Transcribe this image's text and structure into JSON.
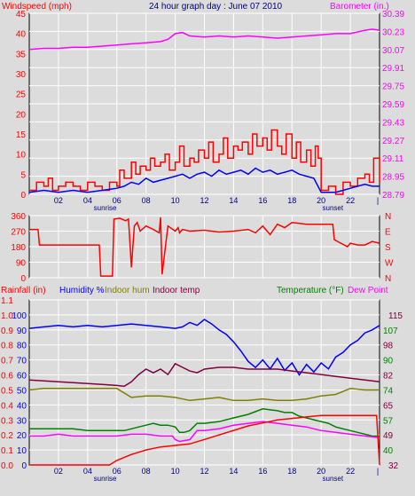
{
  "header": {
    "windspeed_label": "Windspeed (mph)",
    "title": "24 hour graph day : June 07 2010",
    "barometer_label": "Barometer (in.)"
  },
  "bottom_header": {
    "rainfall_label": "Rainfall (in)",
    "humidity_label": "Humidity %",
    "indoor_hum_label": "Indoor hum",
    "indoor_temp_label": "Indoor temp",
    "temperature_label": "Temperature (°F)",
    "dew_point_label": "Dew Point"
  },
  "colors": {
    "windspeed": "#ff0000",
    "avg_wind": "#0000ff",
    "barometer": "#ff00ff",
    "wind_dir": "#ff0000",
    "humidity": "#0000ff",
    "indoor_hum": "#808000",
    "indoor_temp": "#800040",
    "temperature": "#008000",
    "dew_point": "#ff00ff",
    "rainfall": "#ff0000",
    "grid": "#ffffff",
    "plot_bg": "#dcdcdc"
  },
  "x_axis": {
    "ticks": [
      "02",
      "04",
      "06",
      "08",
      "10",
      "12",
      "14",
      "16",
      "18",
      "20",
      "22"
    ],
    "sunrise_label": "sunrise",
    "sunset_label": "sunset",
    "sunrise_hour": 5.2,
    "sunset_hour": 20.8
  },
  "chart_data": [
    {
      "type": "line",
      "name": "wind-barometer",
      "xlim": [
        0,
        24
      ],
      "left_axis": {
        "ticks": [
          "0",
          "5",
          "10",
          "15",
          "20",
          "25",
          "30",
          "35",
          "40",
          "45"
        ],
        "ylim": [
          0,
          45
        ]
      },
      "right_axis": {
        "ticks": [
          "28.79",
          "28.95",
          "29.11",
          "29.27",
          "29.43",
          "29.59",
          "29.75",
          "29.91",
          "30.07",
          "30.23",
          "30.39"
        ],
        "ylim": [
          28.79,
          30.39
        ]
      },
      "series": [
        {
          "name": "Windspeed (mph)",
          "axis": "left",
          "color_key": "windspeed",
          "x": [
            0,
            0.5,
            1,
            1.3,
            1.6,
            2,
            2.5,
            3,
            3.5,
            4,
            4.5,
            5,
            5.5,
            6,
            6.2,
            6.5,
            7,
            7.3,
            7.6,
            8,
            8.3,
            8.6,
            9,
            9.3,
            9.6,
            10,
            10.3,
            10.6,
            11,
            11.3,
            11.6,
            12,
            12.3,
            12.6,
            13,
            13.3,
            13.6,
            14,
            14.3,
            14.6,
            15,
            15.3,
            15.6,
            16,
            16.3,
            16.6,
            17,
            17.3,
            17.6,
            18,
            18.3,
            18.6,
            19,
            19.3,
            19.6,
            19.8,
            20,
            20.5,
            21,
            21.5,
            22,
            22.5,
            23,
            23.3,
            23.6,
            24
          ],
          "y": [
            1,
            3,
            2,
            4,
            1,
            2,
            3,
            2,
            1,
            3,
            2,
            1,
            3,
            2,
            6,
            4,
            8,
            5,
            7,
            6,
            9,
            7,
            8,
            10,
            6,
            8,
            12,
            7,
            9,
            8,
            11,
            9,
            13,
            8,
            10,
            14,
            9,
            12,
            11,
            13,
            10,
            15,
            12,
            14,
            11,
            16,
            12,
            10,
            15,
            9,
            13,
            8,
            11,
            7,
            12,
            9,
            1,
            2,
            0,
            3,
            2,
            4,
            5,
            3,
            9,
            3
          ]
        },
        {
          "name": "Average wind",
          "axis": "left",
          "color_key": "avg_wind",
          "x": [
            0,
            1,
            2,
            3,
            4,
            5,
            6,
            6.5,
            7,
            7.5,
            8,
            8.5,
            9,
            9.5,
            10,
            10.5,
            11,
            11.5,
            12,
            12.5,
            13,
            13.5,
            14,
            14.5,
            15,
            15.5,
            16,
            16.5,
            17,
            17.5,
            18,
            18.5,
            19,
            19.5,
            20,
            20.5,
            21,
            21.5,
            22,
            22.5,
            23,
            23.5,
            24
          ],
          "y": [
            0.5,
            1,
            0.5,
            1,
            0.5,
            1,
            1.5,
            2,
            3,
            2.5,
            4,
            3,
            3.5,
            4,
            4.5,
            5,
            4,
            5,
            5.5,
            4.5,
            6,
            5,
            5.5,
            6,
            5,
            6.5,
            5.5,
            6,
            5,
            5.5,
            6,
            5,
            4.5,
            4,
            0.5,
            0.5,
            0.5,
            1,
            1.5,
            2,
            2.5,
            2,
            2
          ]
        },
        {
          "name": "Barometer (in.)",
          "axis": "right",
          "color_key": "barometer",
          "x": [
            0,
            1,
            2,
            3,
            4,
            5,
            6,
            7,
            8,
            9,
            9.5,
            10,
            10.5,
            11,
            12,
            13,
            14,
            15,
            16,
            17,
            18,
            19,
            20,
            21,
            22,
            23,
            23.5,
            24
          ],
          "y": [
            30.07,
            30.08,
            30.08,
            30.09,
            30.09,
            30.1,
            30.11,
            30.12,
            30.13,
            30.14,
            30.16,
            30.21,
            30.22,
            30.19,
            30.18,
            30.19,
            30.18,
            30.19,
            30.18,
            30.17,
            30.18,
            30.19,
            30.2,
            30.21,
            30.21,
            30.24,
            30.25,
            30.24
          ]
        }
      ]
    },
    {
      "type": "line",
      "name": "wind-direction",
      "xlim": [
        0,
        24
      ],
      "left_axis": {
        "ticks": [
          "0",
          "90",
          "180",
          "270",
          "360"
        ],
        "ylim": [
          0,
          360
        ]
      },
      "right_axis": {
        "ticks": [
          "N",
          "E",
          "S",
          "W",
          "N"
        ]
      },
      "series": [
        {
          "name": "Wind direction",
          "axis": "left",
          "color_key": "wind_dir",
          "x": [
            0,
            0.6,
            0.7,
            4.8,
            4.9,
            5.7,
            5.8,
            6.2,
            6.6,
            6.8,
            7.0,
            7.2,
            7.4,
            7.6,
            8,
            8.5,
            8.9,
            9.0,
            9.1,
            9.5,
            10,
            10.2,
            10.3,
            10.5,
            11,
            12,
            13,
            14,
            15,
            15.5,
            16,
            16.5,
            17,
            17.5,
            18,
            19,
            20,
            20.8,
            20.9,
            21.8,
            22,
            22.5,
            23,
            23.5,
            24
          ],
          "y": [
            280,
            280,
            190,
            190,
            10,
            10,
            340,
            345,
            330,
            340,
            60,
            300,
            320,
            270,
            300,
            280,
            260,
            350,
            20,
            300,
            270,
            290,
            260,
            280,
            270,
            275,
            265,
            270,
            280,
            260,
            300,
            250,
            310,
            290,
            320,
            310,
            310,
            310,
            220,
            180,
            200,
            190,
            190,
            210,
            200
          ]
        }
      ]
    },
    {
      "type": "line",
      "name": "humidity-temperature",
      "xlim": [
        0,
        24
      ],
      "left_axis_rain": {
        "ticks": [
          "0.0",
          "0.1",
          "0.2",
          "0.3",
          "0.4",
          "0.5",
          "0.6",
          "0.7",
          "0.8",
          "0.9",
          "1.0",
          "1.1"
        ],
        "ylim": [
          0,
          1.1
        ]
      },
      "left_axis_hum": {
        "ticks": [
          "0",
          "10",
          "20",
          "30",
          "40",
          "50",
          "60",
          "70",
          "80",
          "90",
          "100"
        ],
        "ylim": [
          0,
          100
        ]
      },
      "right_axis_temp": {
        "ticks": [
          "32",
          "40",
          "49",
          "57",
          "65",
          "74",
          "82",
          "90",
          "98",
          "107",
          "115"
        ],
        "ylim": [
          32,
          115
        ]
      },
      "series": [
        {
          "name": "Humidity %",
          "color_key": "humidity",
          "axis": "hum",
          "x": [
            0,
            1,
            2,
            3,
            4,
            5,
            6,
            7,
            8,
            9,
            10,
            10.5,
            11,
            11.5,
            12,
            12.5,
            13,
            13.5,
            14,
            14.5,
            15,
            15.5,
            16,
            16.5,
            17,
            17.5,
            18,
            18.5,
            19,
            19.5,
            20,
            20.5,
            21,
            21.5,
            22,
            22.5,
            23,
            23.5,
            24
          ],
          "y": [
            91,
            92,
            93,
            92,
            93,
            92,
            93,
            94,
            93,
            92,
            91,
            92,
            95,
            93,
            97,
            94,
            90,
            87,
            82,
            76,
            69,
            65,
            70,
            64,
            71,
            63,
            68,
            60,
            67,
            62,
            68,
            64,
            72,
            75,
            80,
            83,
            88,
            90,
            93
          ]
        },
        {
          "name": "Indoor hum",
          "color_key": "indoor_hum",
          "axis": "hum",
          "x": [
            0,
            1,
            2,
            3,
            4,
            5,
            6,
            7,
            8,
            9,
            10,
            11,
            12,
            13,
            14,
            15,
            16,
            17,
            18,
            19,
            20,
            21,
            22,
            23,
            24
          ],
          "y": [
            50,
            51,
            51,
            51,
            51,
            51,
            51,
            45,
            46,
            46,
            45,
            43,
            44,
            45,
            43,
            43,
            44,
            43,
            43,
            44,
            46,
            47,
            51,
            50,
            50
          ]
        },
        {
          "name": "Indoor temp",
          "color_key": "indoor_temp",
          "axis": "temp",
          "x": [
            0,
            1,
            2,
            3,
            4,
            5,
            6,
            6.5,
            7,
            7.5,
            8,
            8.5,
            9,
            9.5,
            10,
            10.5,
            11,
            11.5,
            12,
            13,
            14,
            15,
            16,
            17,
            18,
            19,
            20,
            21,
            22,
            23,
            24
          ],
          "y": [
            79,
            78.5,
            78,
            77.5,
            77,
            76.5,
            76,
            75.5,
            78,
            82,
            85,
            83,
            85,
            82,
            88,
            86,
            84,
            83,
            85,
            86,
            86,
            85,
            85,
            85,
            84,
            83,
            82,
            81,
            80,
            79,
            78
          ]
        },
        {
          "name": "Temperature (°F)",
          "color_key": "temperature",
          "axis": "temp",
          "x": [
            0,
            1,
            2,
            3,
            4,
            5,
            6,
            6.5,
            7,
            7.5,
            8,
            8.5,
            9,
            9.5,
            10,
            10.3,
            10.6,
            11,
            11.5,
            12,
            13,
            14,
            15,
            16,
            17,
            17.5,
            18,
            18.5,
            19,
            19.5,
            20,
            20.5,
            21,
            21.5,
            22,
            22.5,
            23,
            23.5,
            24
          ],
          "y": [
            52,
            52,
            52,
            52,
            51,
            51,
            51,
            51,
            52,
            53,
            54,
            55,
            54,
            54,
            53,
            50,
            50,
            51,
            55,
            55,
            56,
            58,
            60,
            63,
            62,
            61,
            61,
            59,
            58,
            57,
            56,
            55,
            53,
            52,
            51,
            50,
            49,
            48,
            48
          ]
        },
        {
          "name": "Dew Point",
          "color_key": "dew_point",
          "axis": "temp",
          "x": [
            0,
            1,
            2,
            3,
            4,
            5,
            6,
            7,
            8,
            9,
            9.8,
            10,
            10.3,
            11,
            11.5,
            12,
            13,
            14,
            15,
            16,
            17,
            18,
            19,
            20,
            21,
            22,
            23,
            24
          ],
          "y": [
            48,
            48,
            49,
            48,
            48,
            48,
            48,
            49,
            49,
            48,
            48,
            46,
            45,
            46,
            51,
            51,
            52,
            54,
            55,
            56,
            55,
            54,
            53,
            51,
            50,
            49,
            48,
            47
          ]
        },
        {
          "name": "Rainfall (in)",
          "color_key": "rainfall",
          "axis": "rain",
          "x": [
            0,
            2,
            4,
            5.5,
            6,
            7,
            8,
            9,
            10,
            11,
            12,
            13,
            14,
            15,
            16,
            17,
            18,
            19,
            20,
            21,
            22,
            23,
            23.8,
            24
          ],
          "y": [
            0,
            0,
            0,
            0,
            0.03,
            0.07,
            0.1,
            0.12,
            0.13,
            0.14,
            0.17,
            0.2,
            0.23,
            0.26,
            0.28,
            0.3,
            0.31,
            0.32,
            0.33,
            0.33,
            0.33,
            0.33,
            0.33,
            0.0
          ]
        }
      ]
    }
  ]
}
